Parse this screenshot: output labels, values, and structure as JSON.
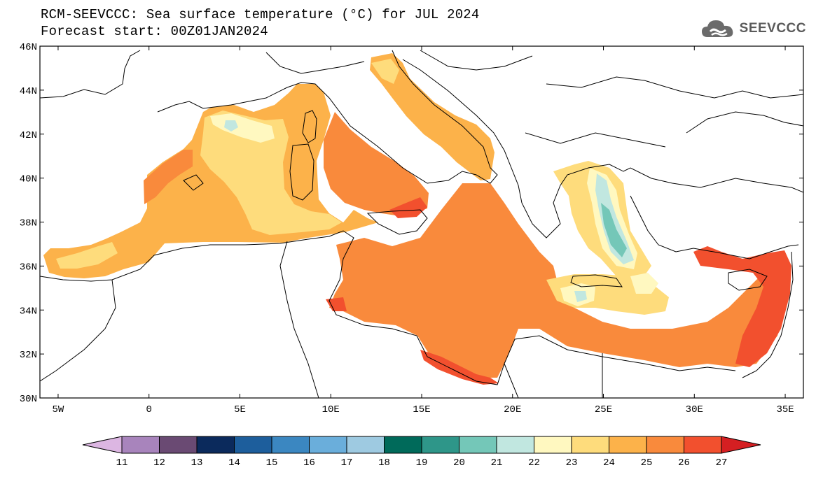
{
  "title_line1": "RCM-SEEVCCC: Sea surface temperature (°C) for JUL 2024",
  "title_line2": "Forecast start: 00Z01JAN2024",
  "logo_text": "SEEVCCC",
  "logo_icon": "cloud-icon",
  "map": {
    "lon_range": [
      -6,
      36
    ],
    "lat_range": [
      30,
      46
    ],
    "x_ticks": [
      "5W",
      "0",
      "5E",
      "10E",
      "15E",
      "20E",
      "25E",
      "30E",
      "35E"
    ],
    "x_tick_values": [
      -5,
      0,
      5,
      10,
      15,
      20,
      25,
      30,
      35
    ],
    "y_ticks": [
      "30N",
      "32N",
      "34N",
      "36N",
      "38N",
      "40N",
      "42N",
      "44N",
      "46N"
    ],
    "y_tick_values": [
      30,
      32,
      34,
      36,
      38,
      40,
      42,
      44,
      46
    ]
  },
  "colorbar": {
    "labels": [
      "11",
      "12",
      "13",
      "14",
      "15",
      "16",
      "17",
      "18",
      "19",
      "20",
      "21",
      "22",
      "23",
      "24",
      "25",
      "26",
      "27"
    ],
    "colors": [
      "#dcb6e2",
      "#a884bc",
      "#6a4a73",
      "#0b2a5c",
      "#1d5e9c",
      "#3b87c1",
      "#6aaedb",
      "#9ecae1",
      "#006a5a",
      "#2e9689",
      "#74c7b8",
      "#c1e7e0",
      "#fff8c0",
      "#fedc7c",
      "#fcb24a",
      "#f98a3c",
      "#f2502e",
      "#d51f22"
    ]
  }
}
